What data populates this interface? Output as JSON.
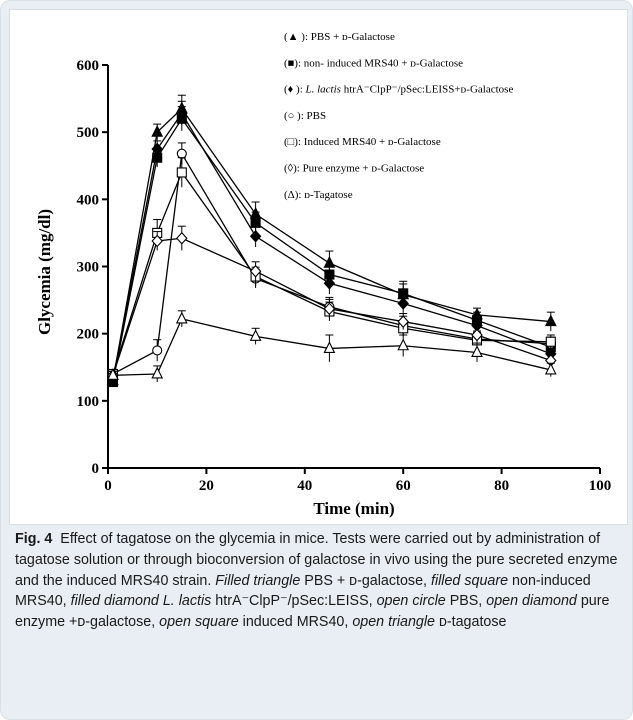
{
  "caption": {
    "figure_number": "Fig. 4",
    "parts": [
      {
        "text": "Effect of tagatose on the glycemia in mice. Tests were carried out by administration of tagatose solution or through bioconversion of galactose in vivo using the pure secreted enzyme and the induced MRS40 strain. ",
        "italic": false
      },
      {
        "text": "Filled triangle",
        "italic": true
      },
      {
        "text": " PBS + ᴅ-galactose, ",
        "italic": false
      },
      {
        "text": "filled square",
        "italic": true
      },
      {
        "text": " non-induced MRS40, ",
        "italic": false
      },
      {
        "text": "filled diamond L. lactis",
        "italic": true
      },
      {
        "text": " htrA⁻ClpP⁻/pSec:LEISS, ",
        "italic": false
      },
      {
        "text": "open circle",
        "italic": true
      },
      {
        "text": " PBS, ",
        "italic": false
      },
      {
        "text": "open diamond",
        "italic": true
      },
      {
        "text": " pure enzyme +ᴅ-galactose, ",
        "italic": false
      },
      {
        "text": "open square",
        "italic": true
      },
      {
        "text": " induced MRS40, ",
        "italic": false
      },
      {
        "text": "open triangle",
        "italic": true
      },
      {
        "text": " ᴅ-tagatose",
        "italic": false
      }
    ]
  },
  "chart_data": {
    "type": "line",
    "xlabel": "Time (min)",
    "ylabel": "Glycemia (mg/dl)",
    "xlim": [
      0,
      100
    ],
    "ylim": [
      0,
      600
    ],
    "xticks": [
      0,
      20,
      40,
      60,
      80,
      100
    ],
    "yticks": [
      0,
      100,
      200,
      300,
      400,
      500,
      600
    ],
    "grid": false,
    "legend_position": "top-right",
    "series": [
      {
        "marker": "filled-triangle",
        "legend_parts": [
          {
            "text": "(▲ ): PBS + ",
            "italic": false
          },
          {
            "text": "ᴅ-Galactose",
            "italic": false
          }
        ],
        "points": [
          [
            1,
            130,
            6
          ],
          [
            10,
            500,
            12
          ],
          [
            15,
            535,
            20
          ],
          [
            30,
            378,
            18
          ],
          [
            45,
            305,
            18
          ],
          [
            60,
            258,
            16
          ],
          [
            75,
            228,
            10
          ],
          [
            90,
            218,
            14
          ]
        ]
      },
      {
        "marker": "filled-square",
        "legend_parts": [
          {
            "text": "(■): non- induced MRS40 + ",
            "italic": false
          },
          {
            "text": "ᴅ-Galactose",
            "italic": false
          }
        ],
        "points": [
          [
            1,
            128,
            6
          ],
          [
            10,
            462,
            14
          ],
          [
            15,
            520,
            18
          ],
          [
            30,
            365,
            16
          ],
          [
            45,
            288,
            14
          ],
          [
            60,
            260,
            18
          ],
          [
            75,
            220,
            12
          ],
          [
            90,
            180,
            10
          ]
        ]
      },
      {
        "marker": "filled-diamond",
        "legend_parts": [
          {
            "text": "(♦ ): ",
            "italic": false
          },
          {
            "text": "L. lactis",
            "italic": true
          },
          {
            "text": " htrA⁻ClpP⁻/pSec:LEISS+ᴅ-Galactose",
            "italic": false
          }
        ],
        "points": [
          [
            1,
            132,
            6
          ],
          [
            10,
            475,
            12
          ],
          [
            15,
            528,
            18
          ],
          [
            30,
            345,
            16
          ],
          [
            45,
            275,
            16
          ],
          [
            60,
            245,
            14
          ],
          [
            75,
            212,
            12
          ],
          [
            90,
            170,
            10
          ]
        ]
      },
      {
        "marker": "open-circle",
        "legend_parts": [
          {
            "text": "(○ ): PBS",
            "italic": false
          }
        ],
        "points": [
          [
            1,
            140,
            6
          ],
          [
            10,
            175,
            16
          ],
          [
            15,
            468,
            16
          ],
          [
            30,
            282,
            14
          ],
          [
            45,
            240,
            14
          ],
          [
            60,
            212,
            14
          ],
          [
            75,
            192,
            12
          ],
          [
            90,
            185,
            10
          ]
        ]
      },
      {
        "marker": "open-square",
        "legend_parts": [
          {
            "text": "(□): Induced MRS40 + ",
            "italic": false
          },
          {
            "text": "ᴅ-Galactose",
            "italic": false
          }
        ],
        "points": [
          [
            1,
            140,
            6
          ],
          [
            10,
            350,
            20
          ],
          [
            15,
            440,
            22
          ],
          [
            30,
            285,
            14
          ],
          [
            45,
            233,
            14
          ],
          [
            60,
            208,
            12
          ],
          [
            75,
            190,
            12
          ],
          [
            90,
            188,
            10
          ]
        ]
      },
      {
        "marker": "open-diamond",
        "legend_parts": [
          {
            "text": "(◊): Pure enzyme + ",
            "italic": false
          },
          {
            "text": "ᴅ-Galactose",
            "italic": false
          }
        ],
        "points": [
          [
            1,
            138,
            6
          ],
          [
            10,
            338,
            14
          ],
          [
            15,
            342,
            18
          ],
          [
            30,
            293,
            14
          ],
          [
            45,
            237,
            14
          ],
          [
            60,
            218,
            12
          ],
          [
            75,
            198,
            12
          ],
          [
            90,
            160,
            10
          ]
        ]
      },
      {
        "marker": "open-triangle",
        "legend_parts": [
          {
            "text": "(Δ): ",
            "italic": false
          },
          {
            "text": "ᴅ-Tagatose",
            "italic": false
          }
        ],
        "points": [
          [
            1,
            138,
            6
          ],
          [
            10,
            140,
            12
          ],
          [
            15,
            222,
            12
          ],
          [
            30,
            196,
            12
          ],
          [
            45,
            178,
            20
          ],
          [
            60,
            182,
            16
          ],
          [
            75,
            172,
            14
          ],
          [
            90,
            146,
            10
          ]
        ]
      }
    ]
  }
}
